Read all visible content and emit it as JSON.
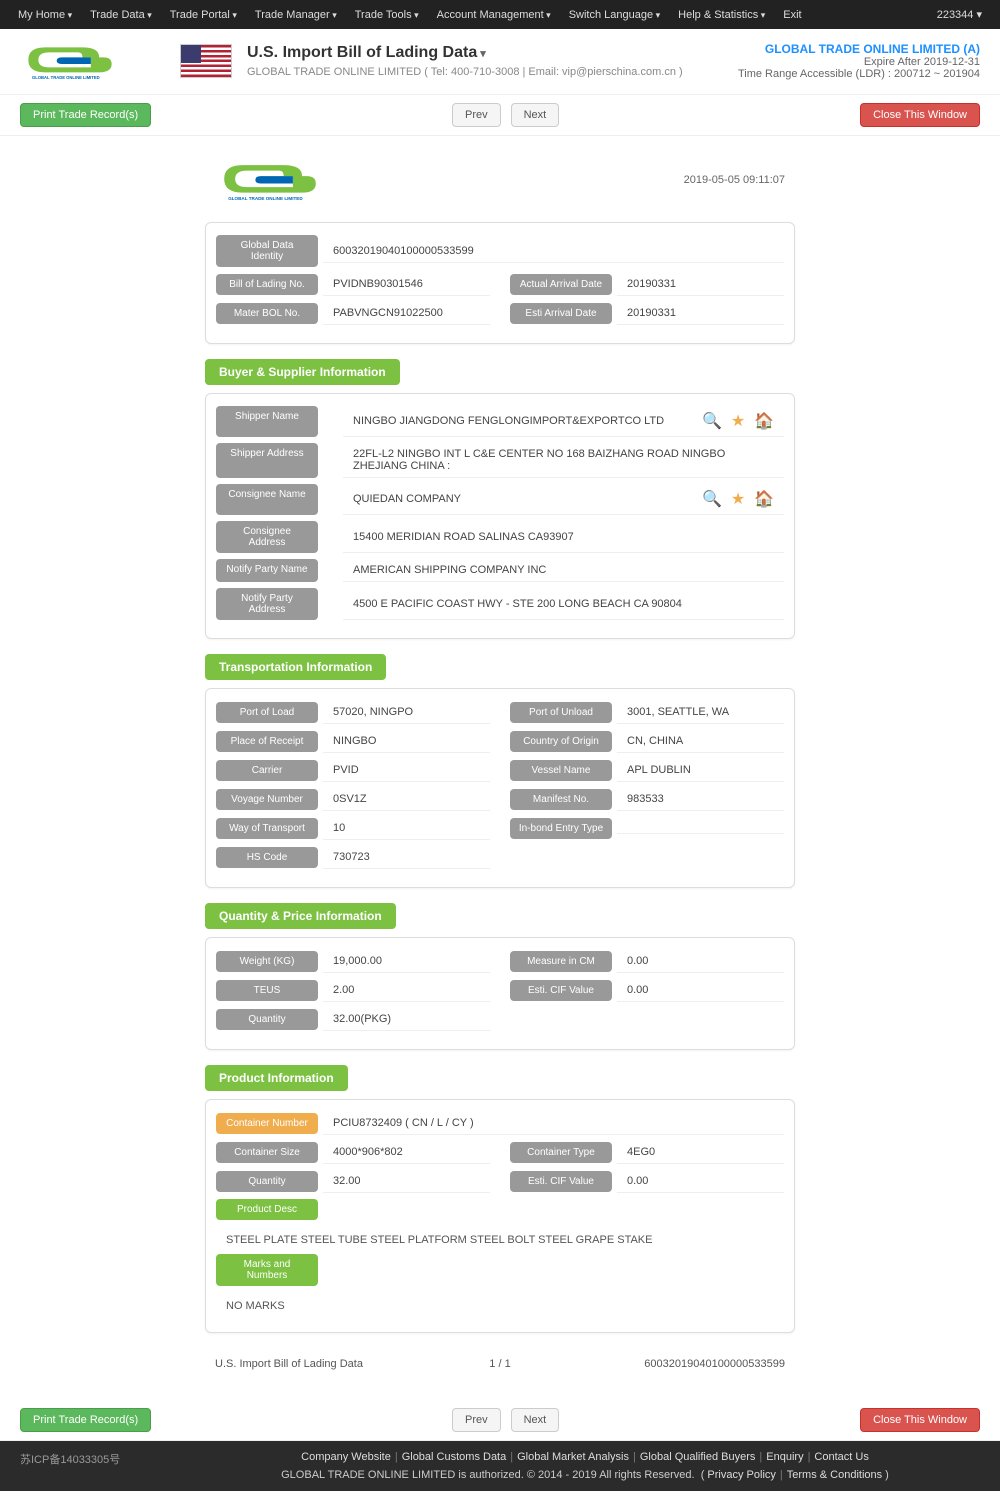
{
  "topnav": {
    "items": [
      "My Home",
      "Trade Data",
      "Trade Portal",
      "Trade Manager",
      "Trade Tools",
      "Account Management",
      "Switch Language",
      "Help & Statistics",
      "Exit"
    ],
    "userid": "223344"
  },
  "header": {
    "title": "U.S. Import Bill of Lading Data",
    "subtitle": "GLOBAL TRADE ONLINE LIMITED ( Tel: 400-710-3008 | Email: vip@pierschina.com.cn )",
    "company": "GLOBAL TRADE ONLINE LIMITED (A)",
    "expire": "Expire After 2019-12-31",
    "timerange": "Time Range Accessible (LDR) : 200712 ~ 201904",
    "logotag": "GLOBAL TRADE ONLINE LIMITED"
  },
  "toolbar": {
    "print": "Print Trade Record(s)",
    "prev": "Prev",
    "next": "Next",
    "close": "Close This Window"
  },
  "timestamp": "2019-05-05 09:11:07",
  "identity": {
    "gdi_label": "Global Data Identity",
    "gdi": "60032019040100000533599",
    "bol_label": "Bill of Lading No.",
    "bol": "PVIDNB90301546",
    "aad_label": "Actual Arrival Date",
    "aad": "20190331",
    "mbol_label": "Mater BOL No.",
    "mbol": "PABVNGCN91022500",
    "ead_label": "Esti Arrival Date",
    "ead": "20190331"
  },
  "buyer": {
    "title": "Buyer & Supplier Information",
    "shipper_name_label": "Shipper Name",
    "shipper_name": "NINGBO JIANGDONG FENGLONGIMPORT&EXPORTCO LTD",
    "shipper_addr_label": "Shipper Address",
    "shipper_addr": "22FL-L2 NINGBO INT L C&E CENTER NO 168 BAIZHANG ROAD NINGBO ZHEJIANG CHINA :",
    "consignee_name_label": "Consignee Name",
    "consignee_name": "QUIEDAN COMPANY",
    "consignee_addr_label": "Consignee Address",
    "consignee_addr": "15400 MERIDIAN ROAD SALINAS CA93907",
    "notify_name_label": "Notify Party Name",
    "notify_name": "AMERICAN SHIPPING COMPANY INC",
    "notify_addr_label": "Notify Party Address",
    "notify_addr": "4500 E PACIFIC COAST HWY - STE 200 LONG BEACH CA 90804"
  },
  "transport": {
    "title": "Transportation Information",
    "pol_label": "Port of Load",
    "pol": "57020, NINGPO",
    "pou_label": "Port of Unload",
    "pou": "3001, SEATTLE, WA",
    "por_label": "Place of Receipt",
    "por": "NINGBO",
    "coo_label": "Country of Origin",
    "coo": "CN, CHINA",
    "carrier_label": "Carrier",
    "carrier": "PVID",
    "vessel_label": "Vessel Name",
    "vessel": "APL DUBLIN",
    "voyage_label": "Voyage Number",
    "voyage": "0SV1Z",
    "manifest_label": "Manifest No.",
    "manifest": "983533",
    "wot_label": "Way of Transport",
    "wot": "10",
    "inbond_label": "In-bond Entry Type",
    "inbond": "",
    "hs_label": "HS Code",
    "hs": "730723"
  },
  "quantity": {
    "title": "Quantity & Price Information",
    "weight_label": "Weight (KG)",
    "weight": "19,000.00",
    "measure_label": "Measure in CM",
    "measure": "0.00",
    "teus_label": "TEUS",
    "teus": "2.00",
    "cif_label": "Esti. CIF Value",
    "cif": "0.00",
    "qty_label": "Quantity",
    "qty": "32.00(PKG)"
  },
  "product": {
    "title": "Product Information",
    "cn_label": "Container Number",
    "cn": "PCIU8732409 ( CN / L / CY )",
    "cs_label": "Container Size",
    "cs": "4000*906*802",
    "ct_label": "Container Type",
    "ct": "4EG0",
    "qty_label": "Quantity",
    "qty": "32.00",
    "cif_label": "Esti. CIF Value",
    "cif": "0.00",
    "desc_label": "Product Desc",
    "desc": "STEEL PLATE STEEL TUBE STEEL PLATFORM STEEL BOLT STEEL GRAPE STAKE",
    "marks_label": "Marks and Numbers",
    "marks": "NO MARKS"
  },
  "recfooter": {
    "name": "U.S. Import Bill of Lading Data",
    "page": "1 / 1",
    "id": "60032019040100000533599"
  },
  "footer": {
    "icp": "苏ICP备14033305号",
    "links": [
      "Company Website",
      "Global Customs Data",
      "Global Market Analysis",
      "Global Qualified Buyers",
      "Enquiry",
      "Contact Us"
    ],
    "copyright": "GLOBAL TRADE ONLINE LIMITED is authorized. © 2014 - 2019 All rights Reserved.",
    "policy": "Privacy Policy",
    "terms": "Terms & Conditions"
  }
}
